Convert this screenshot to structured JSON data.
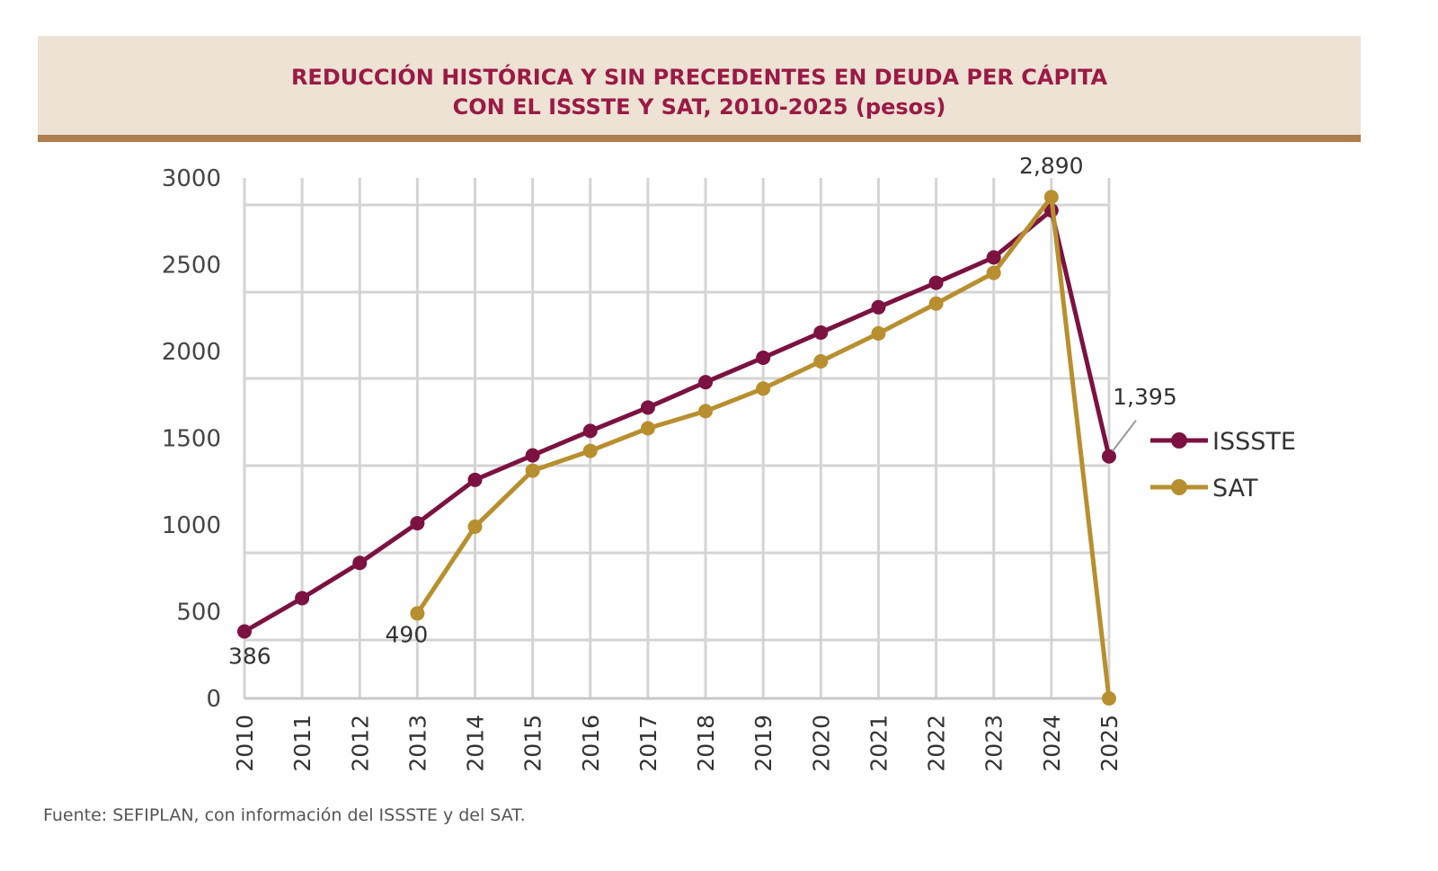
{
  "header": {
    "title_line1": "REDUCCIÓN HISTÓRICA Y SIN PRECEDENTES EN DEUDA PER CÁPITA",
    "title_line2": "CON EL ISSSTE Y SAT, 2010-2025 (pesos)"
  },
  "source": "Fuente: SEFIPLAN, con información del ISSSTE y del SAT.",
  "colors": {
    "issste": "#7b1241",
    "sat": "#b88f2f",
    "grid": "#d4d4d4",
    "banner": "#ede2d3",
    "banner_border": "#b07d4f",
    "title": "#9a1a46"
  },
  "chart_data": {
    "type": "line",
    "title": "REDUCCIÓN HISTÓRICA Y SIN PRECEDENTES EN DEUDA PER CÁPITA CON EL ISSSTE Y SAT, 2010-2025 (pesos)",
    "xlabel": "",
    "ylabel": "",
    "ylim": [
      0,
      3000
    ],
    "yticks": [
      "0",
      "500",
      "1000",
      "1500",
      "2000",
      "2500",
      "3000"
    ],
    "categories": [
      "2010",
      "2011",
      "2012",
      "2013",
      "2014",
      "2015",
      "2016",
      "2017",
      "2018",
      "2019",
      "2020",
      "2021",
      "2022",
      "2023",
      "2024",
      "2025"
    ],
    "grid": true,
    "legend_position": "right",
    "series": [
      {
        "name": "ISSSTE",
        "values": [
          386,
          578,
          781,
          1010,
          1260,
          1401,
          1542,
          1677,
          1823,
          1964,
          2109,
          2255,
          2396,
          2542,
          2813,
          1395
        ]
      },
      {
        "name": "SAT",
        "values": [
          null,
          null,
          null,
          490,
          990,
          1313,
          1427,
          1557,
          1656,
          1786,
          1943,
          2104,
          2276,
          2453,
          2890,
          0
        ]
      }
    ],
    "data_labels": [
      {
        "series": "ISSSTE",
        "x": "2010",
        "text": "386"
      },
      {
        "series": "SAT",
        "x": "2013",
        "text": "490"
      },
      {
        "series": "SAT",
        "x": "2024",
        "text": "2,890"
      },
      {
        "series": "ISSSTE",
        "x": "2025",
        "text": "1,395"
      }
    ]
  }
}
